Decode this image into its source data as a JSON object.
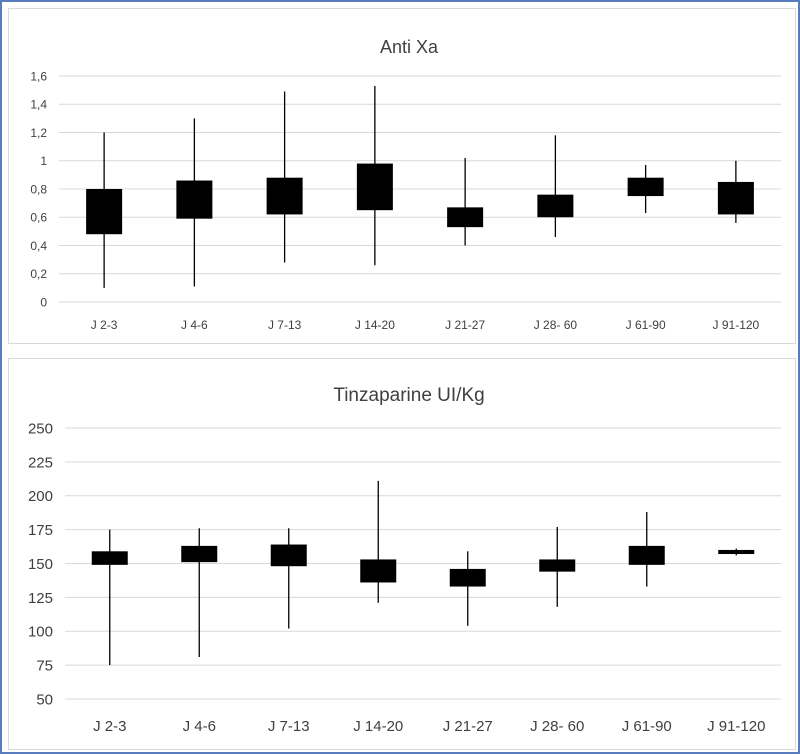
{
  "chart_data": [
    {
      "type": "boxplot",
      "title": "Anti Xa",
      "xlabel": "",
      "ylabel": "",
      "categories": [
        "J 2-3",
        "J 4-6",
        "J 7-13",
        "J 14-20",
        "J 21-27",
        "J 28- 60",
        "J 61-90",
        "J 91-120"
      ],
      "y_ticks": [
        "0",
        "0,2",
        "0,4",
        "0,6",
        "0,8",
        "1",
        "1,2",
        "1,4",
        "1,6"
      ],
      "ylim": [
        0,
        1.6
      ],
      "grid": true,
      "boxes": [
        {
          "min": 0.1,
          "q1": 0.48,
          "q3": 0.8,
          "max": 1.2
        },
        {
          "min": 0.11,
          "q1": 0.59,
          "q3": 0.86,
          "max": 1.3
        },
        {
          "min": 0.28,
          "q1": 0.62,
          "q3": 0.88,
          "max": 1.49
        },
        {
          "min": 0.26,
          "q1": 0.65,
          "q3": 0.98,
          "max": 1.53
        },
        {
          "min": 0.4,
          "q1": 0.53,
          "q3": 0.67,
          "max": 1.02
        },
        {
          "min": 0.46,
          "q1": 0.6,
          "q3": 0.76,
          "max": 1.18
        },
        {
          "min": 0.63,
          "q1": 0.75,
          "q3": 0.88,
          "max": 0.97
        },
        {
          "min": 0.56,
          "q1": 0.62,
          "q3": 0.85,
          "max": 1.0
        }
      ]
    },
    {
      "type": "boxplot",
      "title": "Tinzaparine UI/Kg",
      "xlabel": "",
      "ylabel": "",
      "categories": [
        "J 2-3",
        "J 4-6",
        "J 7-13",
        "J 14-20",
        "J 21-27",
        "J 28- 60",
        "J 61-90",
        "J 91-120"
      ],
      "y_ticks": [
        "50",
        "75",
        "100",
        "125",
        "150",
        "175",
        "200",
        "225",
        "250"
      ],
      "ylim": [
        50,
        250
      ],
      "grid": true,
      "boxes": [
        {
          "min": 75,
          "q1": 149,
          "q3": 159,
          "max": 175
        },
        {
          "min": 81,
          "q1": 151,
          "q3": 163,
          "max": 176
        },
        {
          "min": 102,
          "q1": 148,
          "q3": 164,
          "max": 176
        },
        {
          "min": 121,
          "q1": 136,
          "q3": 153,
          "max": 211
        },
        {
          "min": 104,
          "q1": 133,
          "q3": 146,
          "max": 159
        },
        {
          "min": 118,
          "q1": 144,
          "q3": 153,
          "max": 177
        },
        {
          "min": 133,
          "q1": 149,
          "q3": 163,
          "max": 188
        },
        {
          "min": 156,
          "q1": 157,
          "q3": 160,
          "max": 161
        }
      ]
    }
  ],
  "colors": {
    "box": "#000000",
    "grid": "#d9d9d9",
    "text": "#404040",
    "frame": "#5b7bbf"
  }
}
